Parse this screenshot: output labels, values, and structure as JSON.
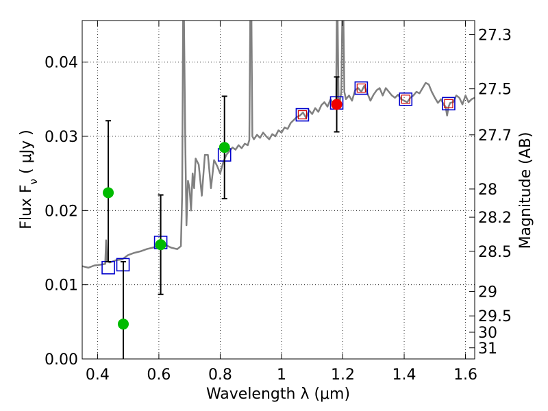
{
  "chart_data": {
    "type": "scatter",
    "xlabel": "Wavelength  λ (μm)",
    "ylabel": "Flux  F",
    "ylabel_sub": "ν",
    "ylabel_unit": " ( μJy )",
    "y2label": "Magnitude (AB)",
    "xlim": [
      0.35,
      1.63
    ],
    "ylim": [
      0.0,
      0.0456
    ],
    "grid": true,
    "x_ticks": [
      0.4,
      0.6,
      0.8,
      1.0,
      1.2,
      1.4,
      1.6
    ],
    "x_tick_labels": [
      "0.4",
      "0.6",
      "0.8",
      "1",
      "1.2",
      "1.4",
      "1.6"
    ],
    "y_ticks": [
      0.0,
      0.01,
      0.02,
      0.03,
      0.04
    ],
    "y_tick_labels": [
      "0.00",
      "0.01",
      "0.02",
      "0.03",
      "0.04"
    ],
    "y2_ticks": [
      {
        "label": "27.3",
        "flux": 0.0437
      },
      {
        "label": "27.5",
        "flux": 0.0364
      },
      {
        "label": "27.7",
        "flux": 0.0302
      },
      {
        "label": "28",
        "flux": 0.0229
      },
      {
        "label": "28.2",
        "flux": 0.0191
      },
      {
        "label": "28.5",
        "flux": 0.0145
      },
      {
        "label": "29",
        "flux": 0.0091
      },
      {
        "label": "29.5",
        "flux": 0.0058
      },
      {
        "label": "30",
        "flux": 0.0036
      },
      {
        "label": "31",
        "flux": 0.0015
      }
    ],
    "colors": {
      "spectrum": "#808080",
      "model_box": "#0000cc",
      "filled_green": "#00bb00",
      "filled_red": "#ee0000",
      "red_box_inner": "#cc0000",
      "errorbar": "#000000"
    },
    "spectrum": [
      [
        0.35,
        0.0125
      ],
      [
        0.37,
        0.0123
      ],
      [
        0.39,
        0.0126
      ],
      [
        0.41,
        0.0127
      ],
      [
        0.425,
        0.0128
      ],
      [
        0.428,
        0.016
      ],
      [
        0.431,
        0.0132
      ],
      [
        0.44,
        0.013
      ],
      [
        0.46,
        0.0133
      ],
      [
        0.48,
        0.0134
      ],
      [
        0.5,
        0.014
      ],
      [
        0.52,
        0.0143
      ],
      [
        0.54,
        0.0145
      ],
      [
        0.56,
        0.0148
      ],
      [
        0.58,
        0.015
      ],
      [
        0.6,
        0.0152
      ],
      [
        0.62,
        0.0154
      ],
      [
        0.64,
        0.015
      ],
      [
        0.66,
        0.0148
      ],
      [
        0.672,
        0.0152
      ],
      [
        0.676,
        0.022
      ],
      [
        0.679,
        0.0456
      ],
      [
        0.682,
        0.0456
      ],
      [
        0.686,
        0.03
      ],
      [
        0.69,
        0.018
      ],
      [
        0.695,
        0.024
      ],
      [
        0.7,
        0.023
      ],
      [
        0.705,
        0.02
      ],
      [
        0.71,
        0.025
      ],
      [
        0.715,
        0.023
      ],
      [
        0.72,
        0.027
      ],
      [
        0.73,
        0.0262
      ],
      [
        0.74,
        0.022
      ],
      [
        0.75,
        0.0275
      ],
      [
        0.76,
        0.0275
      ],
      [
        0.77,
        0.023
      ],
      [
        0.78,
        0.0268
      ],
      [
        0.79,
        0.026
      ],
      [
        0.8,
        0.025
      ],
      [
        0.81,
        0.0265
      ],
      [
        0.82,
        0.0275
      ],
      [
        0.83,
        0.028
      ],
      [
        0.84,
        0.0285
      ],
      [
        0.85,
        0.0282
      ],
      [
        0.86,
        0.0288
      ],
      [
        0.87,
        0.0284
      ],
      [
        0.88,
        0.029
      ],
      [
        0.89,
        0.0288
      ],
      [
        0.895,
        0.0295
      ],
      [
        0.898,
        0.0456
      ],
      [
        0.902,
        0.0456
      ],
      [
        0.905,
        0.03
      ],
      [
        0.91,
        0.0296
      ],
      [
        0.92,
        0.0302
      ],
      [
        0.93,
        0.0298
      ],
      [
        0.94,
        0.0305
      ],
      [
        0.95,
        0.03
      ],
      [
        0.96,
        0.0296
      ],
      [
        0.97,
        0.0303
      ],
      [
        0.98,
        0.03
      ],
      [
        0.99,
        0.0308
      ],
      [
        1.0,
        0.0305
      ],
      [
        1.01,
        0.0312
      ],
      [
        1.02,
        0.031
      ],
      [
        1.03,
        0.0318
      ],
      [
        1.04,
        0.0322
      ],
      [
        1.05,
        0.0326
      ],
      [
        1.06,
        0.0328
      ],
      [
        1.07,
        0.0332
      ],
      [
        1.08,
        0.0325
      ],
      [
        1.09,
        0.0335
      ],
      [
        1.1,
        0.033
      ],
      [
        1.11,
        0.0338
      ],
      [
        1.12,
        0.0333
      ],
      [
        1.13,
        0.0342
      ],
      [
        1.14,
        0.0346
      ],
      [
        1.15,
        0.034
      ],
      [
        1.16,
        0.035
      ],
      [
        1.17,
        0.0342
      ],
      [
        1.178,
        0.0348
      ],
      [
        1.18,
        0.0456
      ],
      [
        1.183,
        0.0456
      ],
      [
        1.186,
        0.0352
      ],
      [
        1.19,
        0.0346
      ],
      [
        1.195,
        0.036
      ],
      [
        1.198,
        0.0456
      ],
      [
        1.202,
        0.0456
      ],
      [
        1.205,
        0.036
      ],
      [
        1.21,
        0.035
      ],
      [
        1.22,
        0.0355
      ],
      [
        1.23,
        0.0348
      ],
      [
        1.24,
        0.0362
      ],
      [
        1.25,
        0.0365
      ],
      [
        1.26,
        0.036
      ],
      [
        1.27,
        0.0368
      ],
      [
        1.28,
        0.0358
      ],
      [
        1.29,
        0.0348
      ],
      [
        1.3,
        0.0356
      ],
      [
        1.31,
        0.0362
      ],
      [
        1.32,
        0.0365
      ],
      [
        1.33,
        0.0355
      ],
      [
        1.34,
        0.0365
      ],
      [
        1.35,
        0.036
      ],
      [
        1.36,
        0.0355
      ],
      [
        1.37,
        0.0352
      ],
      [
        1.38,
        0.0356
      ],
      [
        1.39,
        0.035
      ],
      [
        1.4,
        0.0348
      ],
      [
        1.41,
        0.0346
      ],
      [
        1.42,
        0.0352
      ],
      [
        1.43,
        0.0355
      ],
      [
        1.44,
        0.036
      ],
      [
        1.45,
        0.0358
      ],
      [
        1.46,
        0.0365
      ],
      [
        1.47,
        0.0372
      ],
      [
        1.48,
        0.037
      ],
      [
        1.49,
        0.036
      ],
      [
        1.5,
        0.0352
      ],
      [
        1.51,
        0.0345
      ],
      [
        1.52,
        0.035
      ],
      [
        1.53,
        0.0342
      ],
      [
        1.535,
        0.034
      ],
      [
        1.54,
        0.0328
      ],
      [
        1.545,
        0.034
      ],
      [
        1.55,
        0.0345
      ],
      [
        1.56,
        0.0346
      ],
      [
        1.57,
        0.0355
      ],
      [
        1.58,
        0.0352
      ],
      [
        1.59,
        0.0343
      ],
      [
        1.6,
        0.0355
      ],
      [
        1.61,
        0.0346
      ],
      [
        1.62,
        0.035
      ],
      [
        1.63,
        0.0352
      ]
    ],
    "model_boxes": [
      {
        "x": 0.435,
        "y": 0.0123,
        "red_inner": false
      },
      {
        "x": 0.483,
        "y": 0.0127,
        "red_inner": false
      },
      {
        "x": 0.606,
        "y": 0.0157,
        "red_inner": false
      },
      {
        "x": 0.814,
        "y": 0.0275,
        "red_inner": false
      },
      {
        "x": 1.068,
        "y": 0.0329,
        "red_inner": true
      },
      {
        "x": 1.18,
        "y": 0.0345,
        "red_inner": false
      },
      {
        "x": 1.26,
        "y": 0.0365,
        "red_inner": true
      },
      {
        "x": 1.405,
        "y": 0.035,
        "red_inner": true
      },
      {
        "x": 1.545,
        "y": 0.0344,
        "red_inner": true
      }
    ],
    "observed_points": [
      {
        "x": 0.435,
        "y": 0.0224,
        "ylo": 0.0131,
        "yhi": 0.0321,
        "color": "green"
      },
      {
        "x": 0.484,
        "y": 0.0047,
        "ylo": 0.0,
        "yhi": 0.0131,
        "color": "green"
      },
      {
        "x": 0.606,
        "y": 0.0154,
        "ylo": 0.0087,
        "yhi": 0.0221,
        "color": "green"
      },
      {
        "x": 0.814,
        "y": 0.0285,
        "ylo": 0.0216,
        "yhi": 0.0354,
        "color": "green"
      },
      {
        "x": 1.18,
        "y": 0.0343,
        "ylo": 0.0306,
        "yhi": 0.038,
        "color": "red"
      }
    ]
  }
}
